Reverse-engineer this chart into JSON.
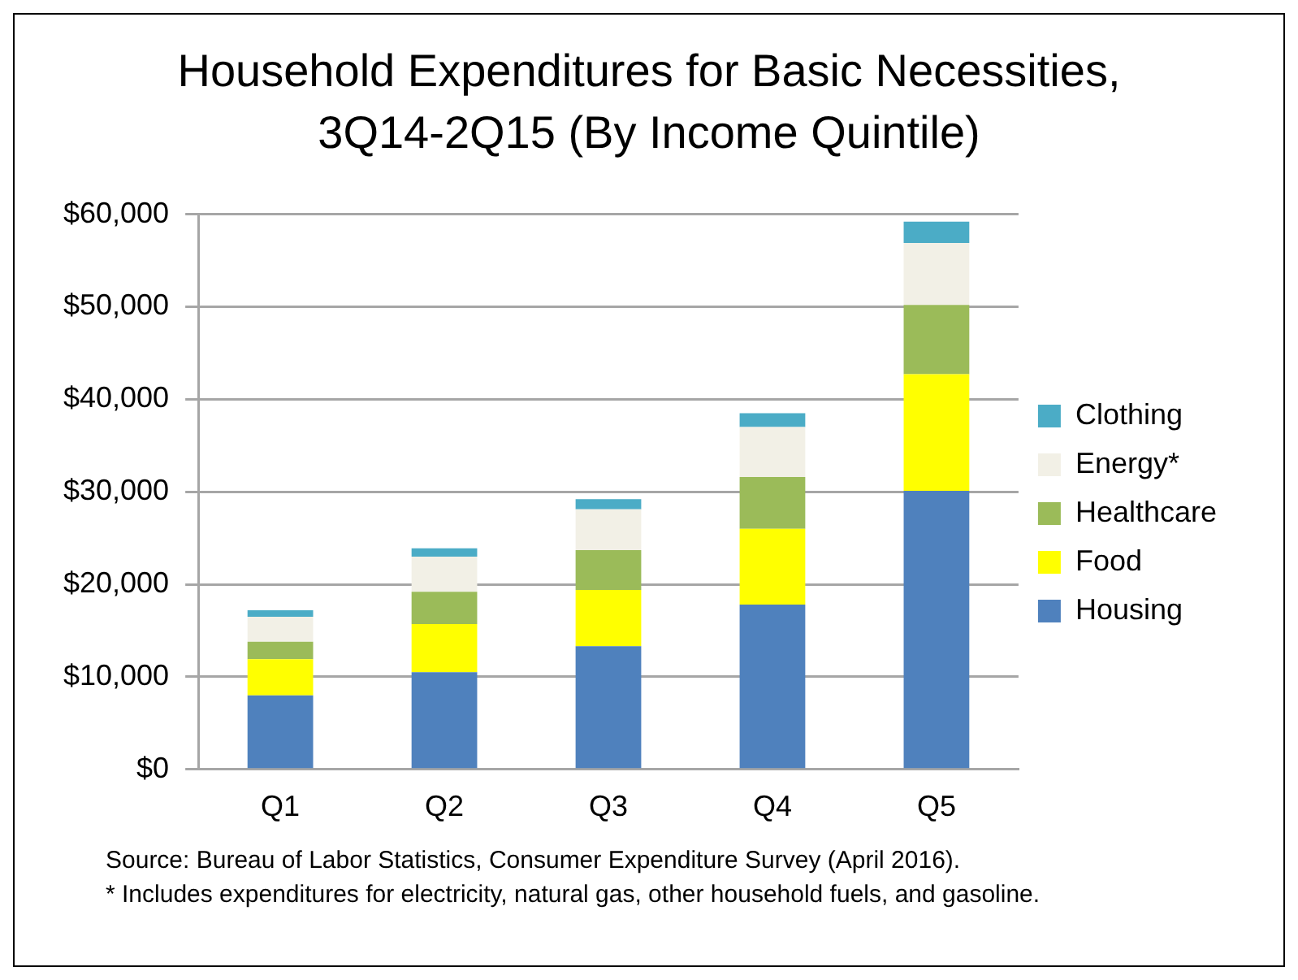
{
  "chart_data": {
    "type": "bar",
    "title": "Household Expenditures for Basic Necessities, 3Q14-2Q15 (By Income Quintile)",
    "categories": [
      "Q1",
      "Q2",
      "Q3",
      "Q4",
      "Q5"
    ],
    "stacked": true,
    "series": [
      {
        "name": "Housing",
        "color": "#4f81bd",
        "values": [
          8000,
          10500,
          13300,
          17800,
          30100
        ]
      },
      {
        "name": "Food",
        "color": "#ffff00",
        "values": [
          3900,
          5200,
          6100,
          8200,
          12600
        ]
      },
      {
        "name": "Healthcare",
        "color": "#9bbb59",
        "values": [
          1900,
          3500,
          4300,
          5600,
          7500
        ]
      },
      {
        "name": "Energy*",
        "color": "#f2f0e6",
        "values": [
          2700,
          3800,
          4400,
          5400,
          6700
        ]
      },
      {
        "name": "Clothing",
        "color": "#4bacc6",
        "values": [
          700,
          900,
          1100,
          1500,
          2300
        ]
      }
    ],
    "ylim": [
      0,
      60000
    ],
    "yticks": [
      {
        "value": 0,
        "label": "$0"
      },
      {
        "value": 10000,
        "label": "$10,000"
      },
      {
        "value": 20000,
        "label": "$20,000"
      },
      {
        "value": 30000,
        "label": "$30,000"
      },
      {
        "value": 40000,
        "label": "$40,000"
      },
      {
        "value": 50000,
        "label": "$50,000"
      },
      {
        "value": 60000,
        "label": "$60,000"
      }
    ],
    "grid": "y",
    "legend": "right",
    "annotations": [
      "Source: Bureau of Labor Statistics, Consumer Expenditure Survey (April 2016).",
      "* Includes expenditures for electricity, natural gas, other household fuels, and gasoline."
    ]
  }
}
